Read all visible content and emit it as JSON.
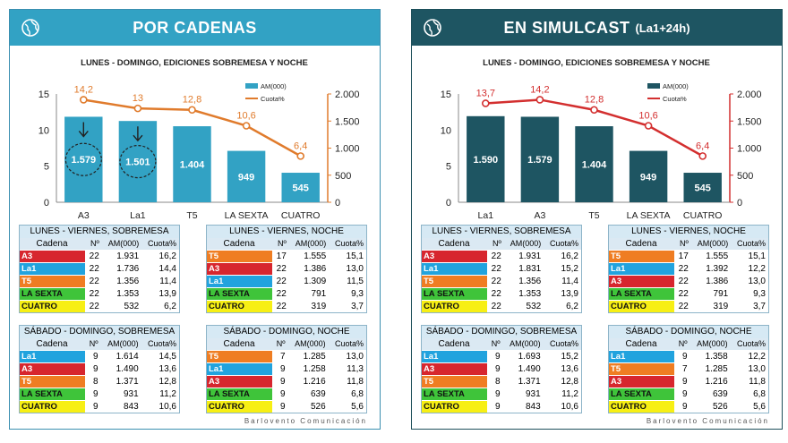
{
  "colors": {
    "A3": "#d7262e",
    "La1": "#21a3de",
    "T5": "#ef7d22",
    "LA SEXTA": "#3fc43a",
    "CUATRO": "#f7ef14",
    "left_accent": "#32a2c4",
    "right_accent": "#1e5562",
    "left_line": "#e07b2c",
    "right_line": "#d32f2f"
  },
  "left": {
    "title": "POR CADENAS",
    "subtitle": "",
    "chart_data": {
      "type": "bar",
      "title": "LUNES - DOMINGO, EDICIONES SOBREMESA Y NOCHE",
      "categories": [
        "A3",
        "La1",
        "T5",
        "LA SEXTA",
        "CUATRO"
      ],
      "series": [
        {
          "name": "AM(000)",
          "type": "bar",
          "axis": "right",
          "values": [
            1579,
            1501,
            1404,
            949,
            545
          ]
        },
        {
          "name": "Cuota%",
          "type": "line",
          "axis": "left",
          "values": [
            14.2,
            13,
            12.8,
            10.6,
            6.4
          ]
        }
      ],
      "y_left": {
        "range": [
          0,
          15
        ],
        "ticks": [
          "0",
          "5",
          "10",
          "15"
        ]
      },
      "y_right": {
        "range": [
          0,
          2000
        ],
        "ticks": [
          "0",
          "500",
          "1.000",
          "1.500",
          "2.000"
        ]
      },
      "bar_labels": [
        "1.579",
        "1.501",
        "1.404",
        "949",
        "545"
      ],
      "line_labels": [
        "14,2",
        "13",
        "12,8",
        "10,6",
        "6,4"
      ],
      "legend": "top-right",
      "annotation": "dashed circles and arrows on A3 and La1"
    },
    "tables": [
      {
        "title": "LUNES - VIERNES, SOBREMESA",
        "headers": [
          "Cadena",
          "Nº",
          "AM(000)",
          "Cuota%"
        ],
        "rows": [
          [
            "A3",
            "22",
            "1.931",
            "16,2"
          ],
          [
            "La1",
            "22",
            "1.736",
            "14,4"
          ],
          [
            "T5",
            "22",
            "1.356",
            "11,4"
          ],
          [
            "LA SEXTA",
            "22",
            "1.353",
            "13,9"
          ],
          [
            "CUATRO",
            "22",
            "532",
            "6,2"
          ]
        ]
      },
      {
        "title": "LUNES - VIERNES, NOCHE",
        "headers": [
          "Cadena",
          "Nº",
          "AM(000)",
          "Cuota%"
        ],
        "rows": [
          [
            "T5",
            "17",
            "1.555",
            "15,1"
          ],
          [
            "A3",
            "22",
            "1.386",
            "13,0"
          ],
          [
            "La1",
            "22",
            "1.309",
            "11,5"
          ],
          [
            "LA SEXTA",
            "22",
            "791",
            "9,3"
          ],
          [
            "CUATRO",
            "22",
            "319",
            "3,7"
          ]
        ]
      },
      {
        "title": "SÁBADO - DOMINGO, SOBREMESA",
        "headers": [
          "Cadena",
          "Nº",
          "AM(000)",
          "Cuota%"
        ],
        "rows": [
          [
            "La1",
            "9",
            "1.614",
            "14,5"
          ],
          [
            "A3",
            "9",
            "1.490",
            "13,6"
          ],
          [
            "T5",
            "8",
            "1.371",
            "12,8"
          ],
          [
            "LA SEXTA",
            "9",
            "931",
            "11,2"
          ],
          [
            "CUATRO",
            "9",
            "843",
            "10,6"
          ]
        ]
      },
      {
        "title": "SÁBADO - DOMINGO, NOCHE",
        "headers": [
          "Cadena",
          "Nº",
          "AM(000)",
          "Cuota%"
        ],
        "rows": [
          [
            "T5",
            "7",
            "1.285",
            "13,0"
          ],
          [
            "La1",
            "9",
            "1.258",
            "11,3"
          ],
          [
            "A3",
            "9",
            "1.216",
            "11,8"
          ],
          [
            "LA SEXTA",
            "9",
            "639",
            "6,8"
          ],
          [
            "CUATRO",
            "9",
            "526",
            "5,6"
          ]
        ]
      }
    ]
  },
  "right": {
    "title": "EN SIMULCAST",
    "subtitle": "(La1+24h)",
    "chart_data": {
      "type": "bar",
      "title": "LUNES - DOMINGO, EDICIONES SOBREMESA Y NOCHE",
      "categories": [
        "La1",
        "A3",
        "T5",
        "LA SEXTA",
        "CUATRO"
      ],
      "series": [
        {
          "name": "AM(000)",
          "type": "bar",
          "axis": "right",
          "values": [
            1590,
            1579,
            1404,
            949,
            545
          ]
        },
        {
          "name": "Cuota%",
          "type": "line",
          "axis": "left",
          "values": [
            13.7,
            14.2,
            12.8,
            10.6,
            6.4
          ]
        }
      ],
      "y_left": {
        "range": [
          0,
          15
        ],
        "ticks": [
          "0",
          "5",
          "10",
          "15"
        ]
      },
      "y_right": {
        "range": [
          0,
          2000
        ],
        "ticks": [
          "0",
          "500",
          "1.000",
          "1.500",
          "2.000"
        ]
      },
      "bar_labels": [
        "1.590",
        "1.579",
        "1.404",
        "949",
        "545"
      ],
      "line_labels": [
        "13,7",
        "14,2",
        "12,8",
        "10,6",
        "6,4"
      ],
      "legend": "top-right"
    },
    "tables": [
      {
        "title": "LUNES - VIERNES, SOBREMESA",
        "headers": [
          "Cadena",
          "Nº",
          "AM(000)",
          "Cuota%"
        ],
        "rows": [
          [
            "A3",
            "22",
            "1.931",
            "16,2"
          ],
          [
            "La1",
            "22",
            "1.831",
            "15,2"
          ],
          [
            "T5",
            "22",
            "1.356",
            "11,4"
          ],
          [
            "LA SEXTA",
            "22",
            "1.353",
            "13,9"
          ],
          [
            "CUATRO",
            "22",
            "532",
            "6,2"
          ]
        ]
      },
      {
        "title": "LUNES - VIERNES, NOCHE",
        "headers": [
          "Cadena",
          "Nº",
          "AM(000)",
          "Cuota%"
        ],
        "rows": [
          [
            "T5",
            "17",
            "1.555",
            "15,1"
          ],
          [
            "La1",
            "22",
            "1.392",
            "12,2"
          ],
          [
            "A3",
            "22",
            "1.386",
            "13,0"
          ],
          [
            "LA SEXTA",
            "22",
            "791",
            "9,3"
          ],
          [
            "CUATRO",
            "22",
            "319",
            "3,7"
          ]
        ]
      },
      {
        "title": "SÁBADO - DOMINGO, SOBREMESA",
        "headers": [
          "Cadena",
          "Nº",
          "AM(000)",
          "Cuota%"
        ],
        "rows": [
          [
            "La1",
            "9",
            "1.693",
            "15,2"
          ],
          [
            "A3",
            "9",
            "1.490",
            "13,6"
          ],
          [
            "T5",
            "8",
            "1.371",
            "12,8"
          ],
          [
            "LA SEXTA",
            "9",
            "931",
            "11,2"
          ],
          [
            "CUATRO",
            "9",
            "843",
            "10,6"
          ]
        ]
      },
      {
        "title": "SÁBADO - DOMINGO, NOCHE",
        "headers": [
          "Cadena",
          "Nº",
          "AM(000)",
          "Cuota%"
        ],
        "rows": [
          [
            "La1",
            "9",
            "1.358",
            "12,2"
          ],
          [
            "T5",
            "7",
            "1.285",
            "13,0"
          ],
          [
            "A3",
            "9",
            "1.216",
            "11,8"
          ],
          [
            "LA SEXTA",
            "9",
            "639",
            "6,8"
          ],
          [
            "CUATRO",
            "9",
            "526",
            "5,6"
          ]
        ]
      }
    ]
  },
  "footer": "Barlovento Comunicación"
}
